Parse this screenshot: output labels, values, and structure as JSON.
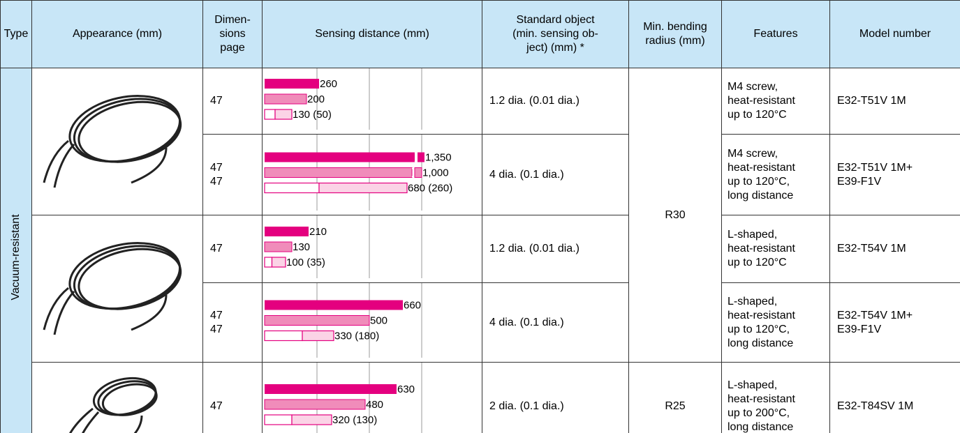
{
  "header": [
    [
      "Type"
    ],
    [
      "Appearance (mm)"
    ],
    [
      "Dimen-",
      "sions",
      "page"
    ],
    [
      "Sensing distance (mm)"
    ],
    [
      "Standard object",
      "(min. sensing ob-",
      "ject) (mm) *"
    ],
    [
      "Min. bending",
      "radius (mm)"
    ],
    [
      "Features"
    ],
    [
      "Model number"
    ]
  ],
  "type": "Vacuum-resistant",
  "sensing_scale": {
    "xlim": [
      0,
      1040
    ],
    "gridlines": [
      250,
      500,
      750
    ],
    "colors": [
      "#e4007f",
      "#f08cba",
      "#fbd3e6"
    ]
  },
  "rows": [
    {
      "page": [
        "47"
      ],
      "bars": [
        {
          "value": 260,
          "label": "260"
        },
        {
          "value": 200,
          "label": "200"
        },
        {
          "value": 130,
          "inner": 50,
          "label": "130 (50)"
        }
      ],
      "standard": "1.2 dia. (0.01 dia.)",
      "features": [
        "M4 screw,",
        "heat-resistant",
        "up to 120°C"
      ],
      "model": [
        "E32-T51V 1M"
      ]
    },
    {
      "page": [
        "47",
        "47"
      ],
      "bars": [
        {
          "value": 1350,
          "label": "1,350",
          "broken": true
        },
        {
          "value": 1000,
          "label": "1,000",
          "broken": true
        },
        {
          "value": 680,
          "inner": 260,
          "label": "680 (260)"
        }
      ],
      "standard": "4 dia. (0.1 dia.)",
      "features": [
        "M4 screw,",
        "heat-resistant",
        "up to 120°C,",
        "long distance"
      ],
      "model": [
        "E32-T51V 1M+",
        "E39-F1V"
      ]
    },
    {
      "page": [
        "47"
      ],
      "bars": [
        {
          "value": 210,
          "label": "210"
        },
        {
          "value": 130,
          "label": "130"
        },
        {
          "value": 100,
          "inner": 35,
          "label": "100 (35)"
        }
      ],
      "standard": "1.2 dia. (0.01 dia.)",
      "features": [
        "L-shaped,",
        "heat-resistant",
        "up to 120°C"
      ],
      "model": [
        "E32-T54V 1M"
      ]
    },
    {
      "page": [
        "47",
        "47"
      ],
      "bars": [
        {
          "value": 660,
          "label": "660"
        },
        {
          "value": 500,
          "label": "500"
        },
        {
          "value": 330,
          "inner": 180,
          "label": "330 (180)"
        }
      ],
      "standard": "4 dia. (0.1 dia.)",
      "features": [
        "L-shaped,",
        "heat-resistant",
        "up to 120°C,",
        "long distance"
      ],
      "model": [
        "E32-T54V 1M+",
        "E39-F1V"
      ]
    },
    {
      "page": [
        "47"
      ],
      "bars": [
        {
          "value": 630,
          "label": "630"
        },
        {
          "value": 480,
          "label": "480"
        },
        {
          "value": 320,
          "inner": 130,
          "label": "320 (130)"
        }
      ],
      "standard": "2 dia. (0.1 dia.)",
      "features": [
        "L-shaped,",
        "heat-resistant",
        "up to 200°C,",
        "long distance"
      ],
      "model": [
        "E32-T84SV 1M"
      ]
    }
  ],
  "bending": [
    "R30",
    "R25"
  ]
}
